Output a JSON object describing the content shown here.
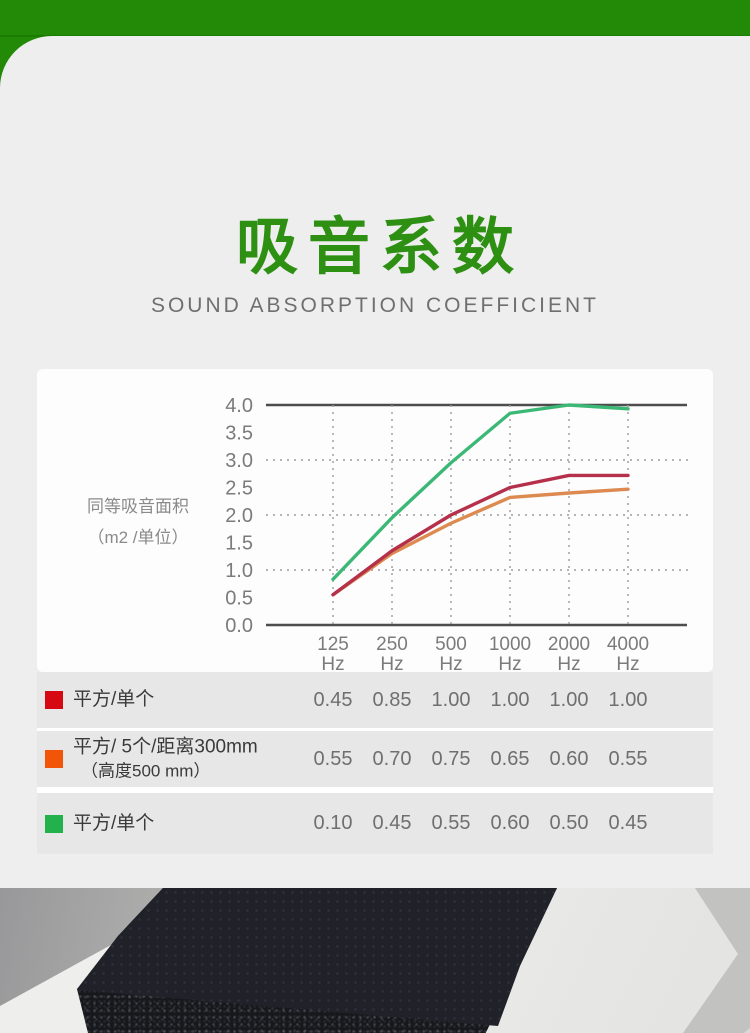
{
  "page": {
    "background": "#eeeeee",
    "band_color": "#228a06"
  },
  "header": {
    "title": "吸音系数",
    "subtitle": "SOUND ABSORPTION COEFFICIENT",
    "title_color": "#2e9013",
    "subtitle_color": "#6f6f6f"
  },
  "chart_data": {
    "type": "line",
    "title": "",
    "x_tick_labels": [
      "125",
      "250",
      "500",
      "1000",
      "2000",
      "4000"
    ],
    "x_tick_unit": "Hz",
    "ylabel_lines": [
      "同等吸音面积",
      "（m2 /单位）"
    ],
    "ylim": [
      0,
      4
    ],
    "yticks": [
      4.0,
      3.5,
      3.0,
      2.5,
      2.0,
      1.5,
      1.0,
      0.5,
      0.0
    ],
    "solid_gridlines": [
      4.0,
      0.0
    ],
    "dotted_gridlines": [
      3.0,
      2.0,
      1.0
    ],
    "grid": "solid lines at 0.0 and 4.0, dotted horizontals at 1.0/2.0/3.0, dashed verticals at each frequency",
    "legend_position": "table below chart",
    "series": [
      {
        "name": "平方/单个",
        "color": "#b5304a",
        "swatch": "#d60812",
        "values": [
          0.55,
          1.35,
          2.0,
          2.5,
          2.72,
          2.72
        ]
      },
      {
        "name": "平方/ 5个/距离300mm（高度500 mm）",
        "color": "#dd8a50",
        "swatch": "#f25408",
        "values": [
          0.55,
          1.3,
          1.85,
          2.32,
          2.4,
          2.47
        ]
      },
      {
        "name": "平方/单个",
        "color": "#3cb876",
        "swatch": "#22b14c",
        "values": [
          0.83,
          1.95,
          2.95,
          3.85,
          4.0,
          3.93
        ]
      }
    ]
  },
  "table": {
    "rows": [
      {
        "swatch": "#d60812",
        "label_lines": [
          "平方/单个"
        ],
        "values": [
          "0.45",
          "0.85",
          "1.00",
          "1.00",
          "1.00",
          "1.00"
        ]
      },
      {
        "swatch": "#f25408",
        "label_lines": [
          "平方/ 5个/距离300mm",
          "（高度500 mm）"
        ],
        "values": [
          "0.55",
          "0.70",
          "0.75",
          "0.65",
          "0.60",
          "0.55"
        ]
      },
      {
        "swatch": "#22b14c",
        "label_lines": [
          "平方/单个"
        ],
        "values": [
          "0.10",
          "0.45",
          "0.55",
          "0.60",
          "0.50",
          "0.45"
        ]
      }
    ]
  },
  "photo": {
    "description": "Black acoustic foam block resting on white foam sheets"
  }
}
